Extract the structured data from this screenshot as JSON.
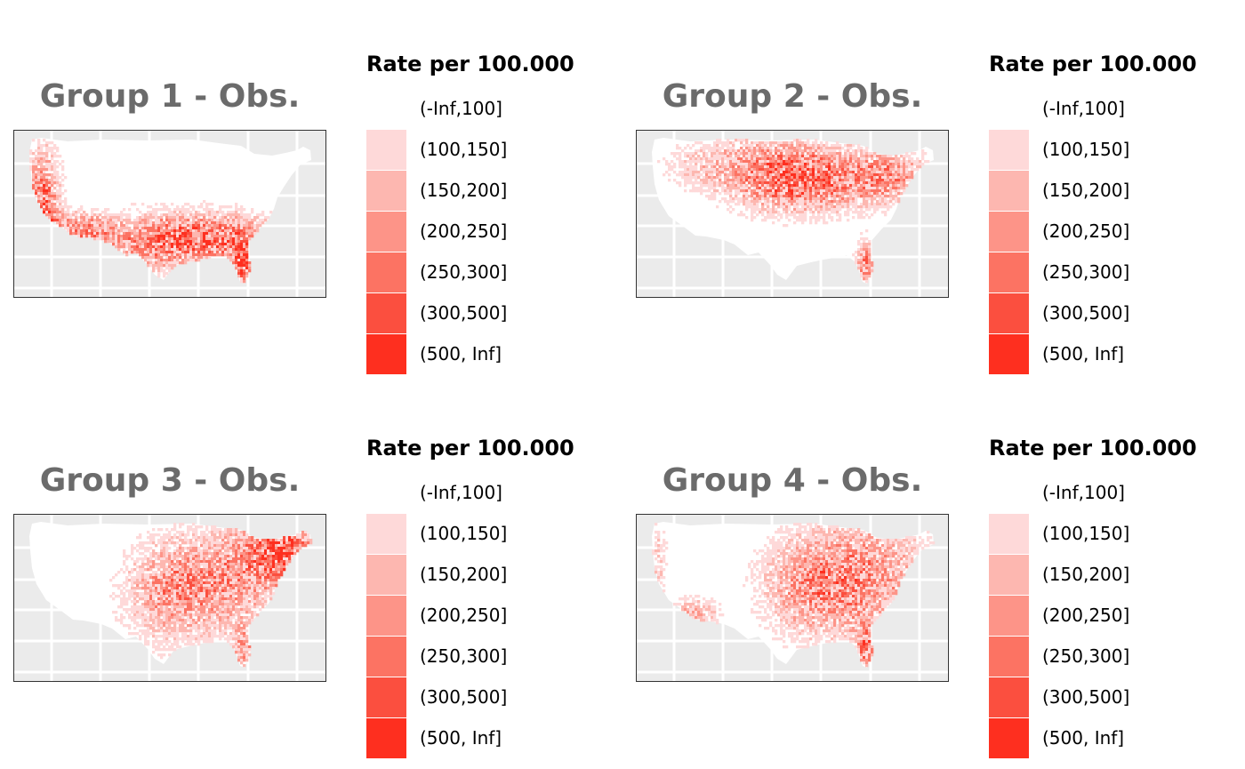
{
  "legend": {
    "title": "Rate per 100.000",
    "classes": [
      {
        "label": "(-Inf,100]",
        "color": "#ffffff"
      },
      {
        "label": "(100,150]",
        "color": "#fed9d9"
      },
      {
        "label": "(150,200]",
        "color": "#fdb7b0"
      },
      {
        "label": "(200,250]",
        "color": "#fd9488"
      },
      {
        "label": "(250,300]",
        "color": "#fc7363"
      },
      {
        "label": "(300,500]",
        "color": "#fb4f3f"
      },
      {
        "label": "(500, Inf]",
        "color": "#fe2f1f"
      }
    ]
  },
  "panels": [
    {
      "title": "Group 1 - Obs."
    },
    {
      "title": "Group 2 - Obs."
    },
    {
      "title": "Group 3 - Obs."
    },
    {
      "title": "Group 4 - Obs."
    }
  ],
  "map_style": {
    "background": "#ebebeb",
    "grid": "#ffffff",
    "land_base": "#ffffff"
  }
}
